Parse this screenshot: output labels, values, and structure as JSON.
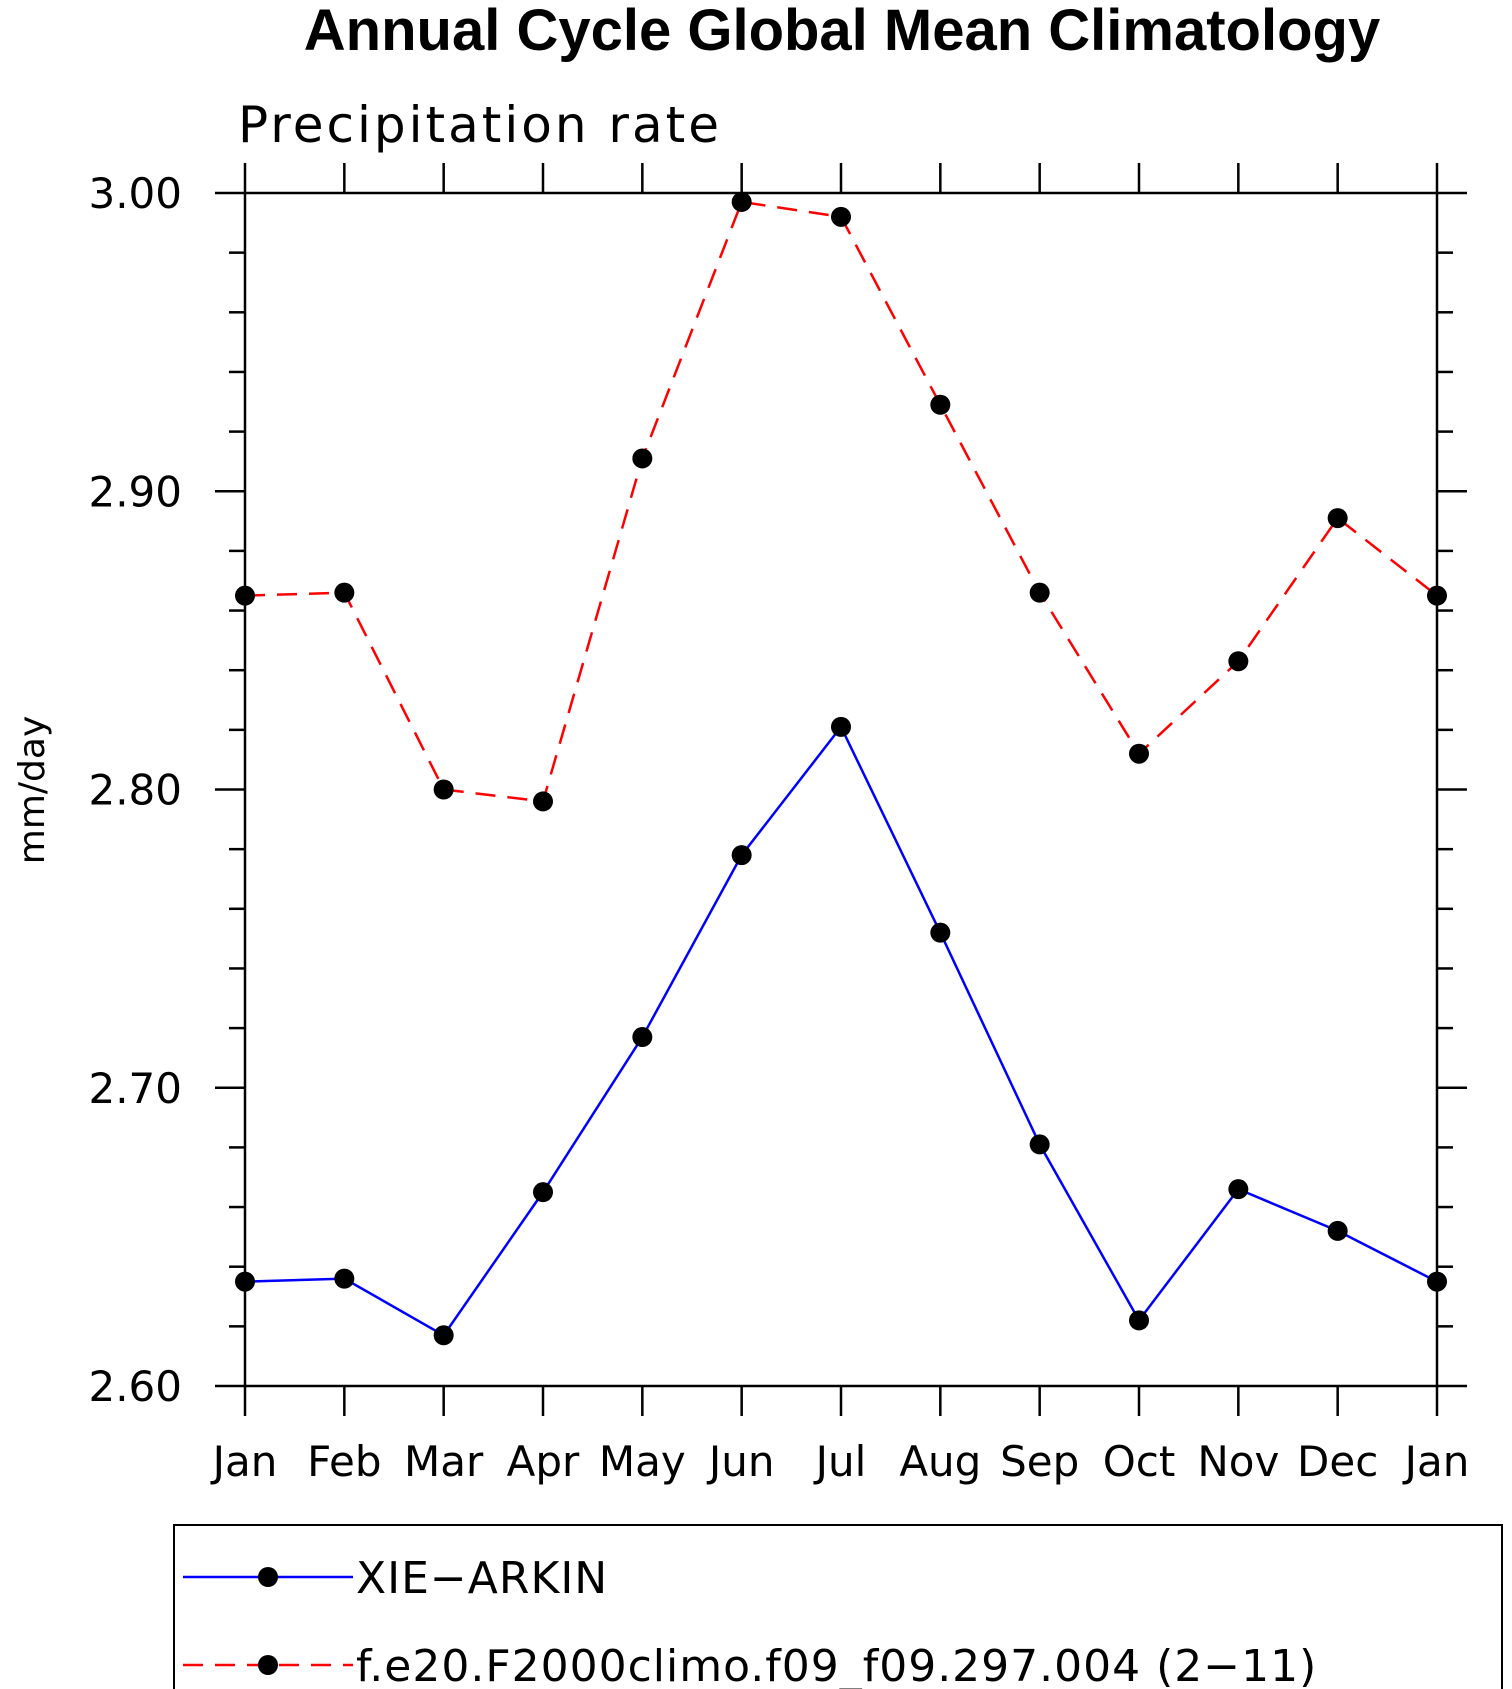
{
  "chart_data": {
    "type": "line",
    "title": "Annual Cycle Global Mean Climatology",
    "subtitle": "Precipitation rate",
    "xlabel": "",
    "ylabel": "mm/day",
    "categories": [
      "Jan",
      "Feb",
      "Mar",
      "Apr",
      "May",
      "Jun",
      "Jul",
      "Aug",
      "Sep",
      "Oct",
      "Nov",
      "Dec",
      "Jan"
    ],
    "ylim": [
      2.6,
      3.0
    ],
    "yticks": [
      "2.60",
      "2.70",
      "2.80",
      "2.90",
      "3.00"
    ],
    "grid": false,
    "legend_position": "bottom",
    "series": [
      {
        "name": "XIE−ARKIN",
        "color": "#0000ff",
        "line_style": "solid",
        "marker": "filled-circle",
        "values": [
          2.635,
          2.636,
          2.617,
          2.665,
          2.717,
          2.778,
          2.821,
          2.752,
          2.681,
          2.622,
          2.666,
          2.652,
          2.635
        ]
      },
      {
        "name": "f.e20.F2000climo.f09_f09.297.004 (2−11)",
        "color": "#ff0000",
        "line_style": "dashed",
        "marker": "filled-circle",
        "values": [
          2.865,
          2.866,
          2.8,
          2.796,
          2.911,
          2.997,
          2.992,
          2.929,
          2.866,
          2.812,
          2.843,
          2.891,
          2.865
        ]
      }
    ]
  }
}
